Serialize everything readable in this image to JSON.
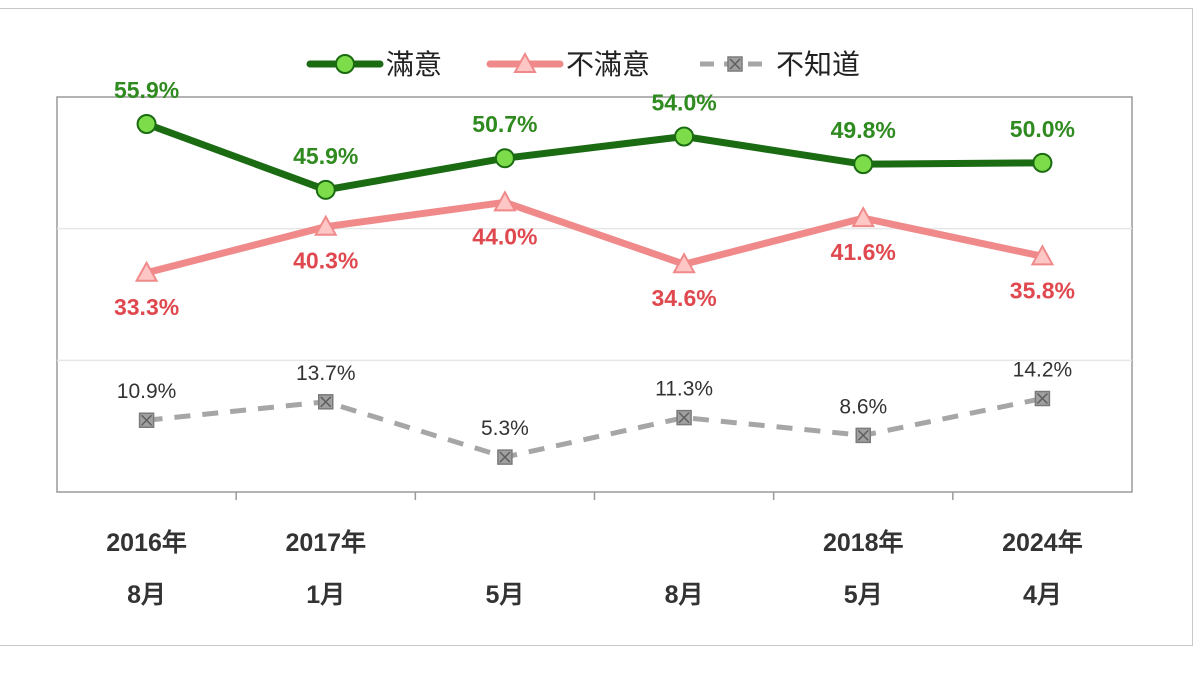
{
  "chart_data": {
    "type": "line",
    "categories": [
      [
        "2016年",
        "8月"
      ],
      [
        "2017年",
        "1月"
      ],
      [
        "",
        "5月"
      ],
      [
        "",
        "8月"
      ],
      [
        "2018年",
        "5月"
      ],
      [
        "2024年",
        "4月"
      ]
    ],
    "series": [
      {
        "name": "滿意",
        "values": [
          55.9,
          45.9,
          50.7,
          54.0,
          49.8,
          50.0
        ],
        "labels": [
          "55.9%",
          "45.9%",
          "50.7%",
          "54.0%",
          "49.8%",
          "50.0%"
        ],
        "color": "#1a6b12",
        "marker_fill": "#7ddc4a",
        "marker": "circle",
        "line_style": "solid",
        "label_position": "above"
      },
      {
        "name": "不滿意",
        "values": [
          33.3,
          40.3,
          44.0,
          34.6,
          41.6,
          35.8
        ],
        "labels": [
          "33.3%",
          "40.3%",
          "44.0%",
          "34.6%",
          "41.6%",
          "35.8%"
        ],
        "color": "#f08a8a",
        "marker_fill": "#ffc6c6",
        "marker": "triangle",
        "line_style": "solid",
        "label_position": "below"
      },
      {
        "name": "不知道",
        "values": [
          10.9,
          13.7,
          5.3,
          11.3,
          8.6,
          14.2
        ],
        "labels": [
          "10.9%",
          "13.7%",
          "5.3%",
          "11.3%",
          "8.6%",
          "14.2%"
        ],
        "color": "#a6a6a6",
        "marker_fill": "#a6a6a6",
        "marker": "square-x",
        "line_style": "dashed",
        "label_position": "above"
      }
    ],
    "ylim": [
      0,
      60
    ],
    "grid": true,
    "legend_position": "top",
    "label_colors": {
      "滿意": "#2f8a1f",
      "不滿意": "#e0484f"
    }
  }
}
